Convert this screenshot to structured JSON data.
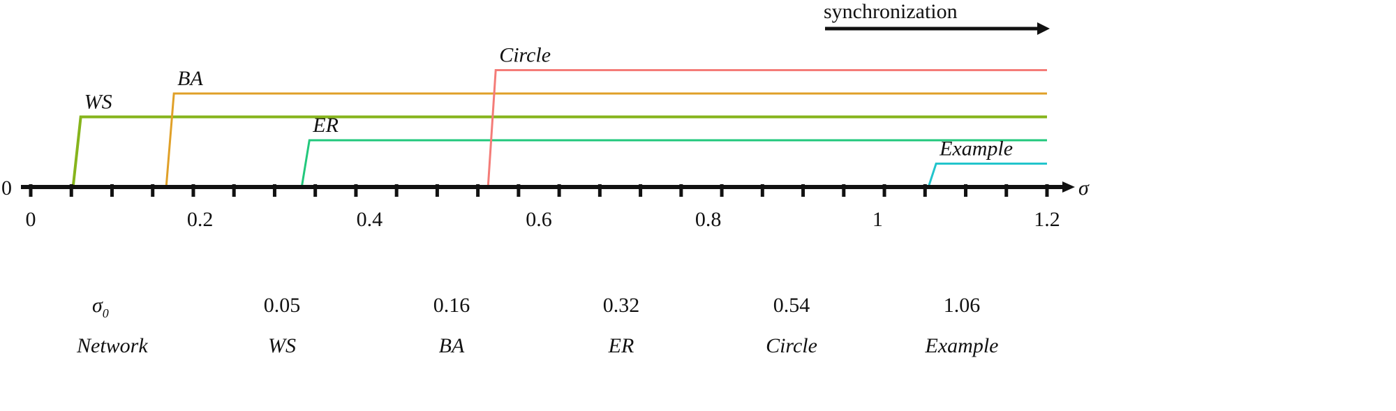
{
  "annotation": {
    "arrow_label": "synchronization"
  },
  "chart_data": {
    "type": "line",
    "title": "",
    "xlabel": "σ",
    "ylabel": "",
    "y_zero_label": "0",
    "xlim": [
      0,
      1.2
    ],
    "xticks": [
      {
        "value": 0,
        "label": "0"
      },
      {
        "value": 0.2,
        "label": "0.2"
      },
      {
        "value": 0.4,
        "label": "0.4"
      },
      {
        "value": 0.6,
        "label": "0.6"
      },
      {
        "value": 0.8,
        "label": "0.8"
      },
      {
        "value": 1,
        "label": "1"
      },
      {
        "value": 1.2,
        "label": "1.2"
      }
    ],
    "series": [
      {
        "name": "WS",
        "onset": 0.05,
        "level": 3,
        "color": "#86b41c"
      },
      {
        "name": "BA",
        "onset": 0.16,
        "level": 4,
        "color": "#e0a028"
      },
      {
        "name": "ER",
        "onset": 0.32,
        "level": 2,
        "color": "#22c87c"
      },
      {
        "name": "Circle",
        "onset": 0.54,
        "level": 5,
        "color": "#f47c78"
      },
      {
        "name": "Example",
        "onset": 1.06,
        "level": 1,
        "color": "#22c4cc"
      }
    ]
  },
  "table": {
    "header": {
      "symbol": "σ",
      "subscript": "0",
      "row_label": "Network"
    },
    "columns": [
      {
        "value": "0.05",
        "network": "WS"
      },
      {
        "value": "0.16",
        "network": "BA"
      },
      {
        "value": "0.32",
        "network": "ER"
      },
      {
        "value": "0.54",
        "network": "Circle"
      },
      {
        "value": "1.06",
        "network": "Example"
      }
    ]
  }
}
